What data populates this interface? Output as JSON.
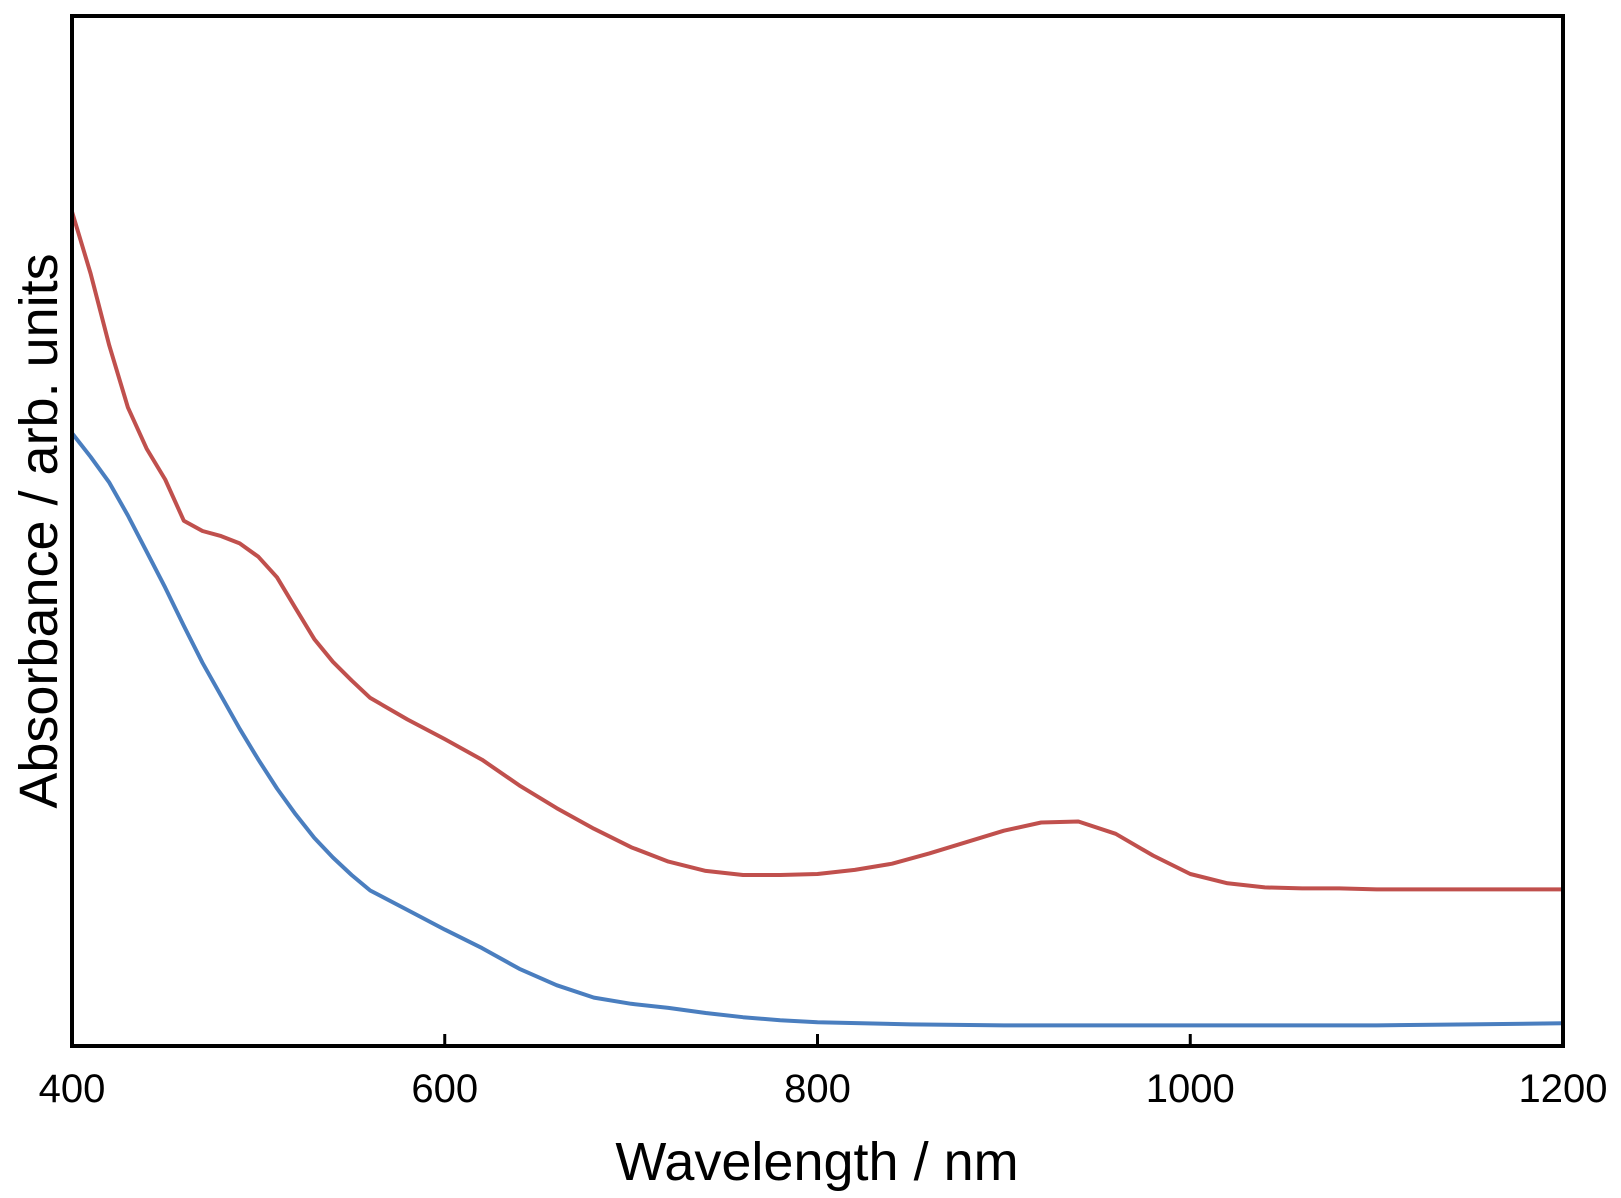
{
  "chart_data": {
    "type": "line",
    "title": "",
    "xlabel": "Wavelength / nm",
    "ylabel": "Absorbance / arb. units",
    "xlim": [
      400,
      1200
    ],
    "ylim": [
      0,
      100
    ],
    "x_ticks": [
      "400",
      "600",
      "800",
      "1000",
      "1200"
    ],
    "y_ticks": [],
    "grid": false,
    "legend": "none",
    "series": [
      {
        "color": "#c0504d",
        "x": [
          400,
          410,
          420,
          430,
          440,
          450,
          460,
          470,
          480,
          490,
          500,
          510,
          520,
          530,
          540,
          550,
          560,
          580,
          600,
          620,
          640,
          660,
          680,
          700,
          720,
          740,
          760,
          780,
          800,
          820,
          840,
          860,
          880,
          900,
          920,
          940,
          960,
          980,
          1000,
          1020,
          1040,
          1060,
          1080,
          1100,
          1150,
          1200
        ],
        "y": [
          81,
          75,
          68,
          62,
          58,
          55,
          51,
          50,
          49.5,
          48.8,
          47.5,
          45.5,
          42.5,
          39.5,
          37.3,
          35.5,
          33.8,
          31.7,
          29.8,
          27.8,
          25.3,
          23.1,
          21.1,
          19.3,
          17.9,
          17.0,
          16.6,
          16.6,
          16.7,
          17.1,
          17.7,
          18.7,
          19.8,
          20.9,
          21.7,
          21.8,
          20.6,
          18.5,
          16.7,
          15.8,
          15.4,
          15.3,
          15.3,
          15.2,
          15.2,
          15.2
        ]
      },
      {
        "color": "#4a7ebf",
        "x": [
          400,
          410,
          420,
          430,
          440,
          450,
          460,
          470,
          480,
          490,
          500,
          510,
          520,
          530,
          540,
          550,
          560,
          580,
          600,
          620,
          640,
          660,
          680,
          700,
          720,
          740,
          760,
          780,
          800,
          850,
          900,
          950,
          1000,
          1050,
          1100,
          1150,
          1200
        ],
        "y": [
          59.5,
          57.2,
          54.7,
          51.5,
          48.0,
          44.5,
          40.8,
          37.2,
          34.0,
          30.8,
          27.8,
          25.0,
          22.5,
          20.2,
          18.3,
          16.6,
          15.1,
          13.2,
          11.3,
          9.5,
          7.5,
          5.9,
          4.7,
          4.1,
          3.7,
          3.2,
          2.8,
          2.5,
          2.3,
          2.1,
          2.0,
          2.0,
          2.0,
          2.0,
          2.0,
          2.1,
          2.2
        ]
      }
    ]
  }
}
